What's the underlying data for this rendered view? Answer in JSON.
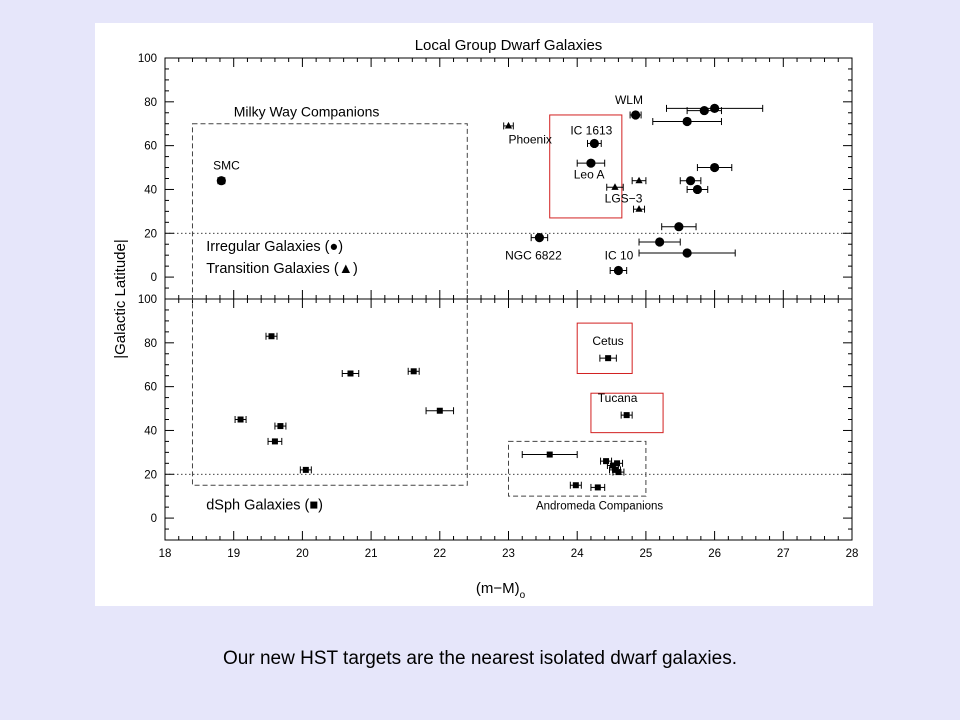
{
  "caption": "Our new HST targets are the nearest isolated dwarf galaxies.",
  "colors": {
    "slide_background": "#e6e6fa",
    "figure_background": "#ffffff",
    "highlight_box": "#d22020",
    "ink": "#000000"
  },
  "chart_data": {
    "type": "scatter",
    "title": "Local Group Dwarf Galaxies",
    "xlabel_main": "(m−M)",
    "xlabel_sub": "o",
    "ylabel": "|Galactic Latitude|",
    "xlim": [
      18,
      28
    ],
    "ylim": [
      -10,
      100
    ],
    "xticks": [
      18,
      19,
      20,
      21,
      22,
      23,
      24,
      25,
      26,
      27,
      28
    ],
    "yticks": [
      0,
      20,
      40,
      60,
      80,
      100
    ],
    "grid": false,
    "reference_line_y": 20,
    "panels": [
      {
        "id": "top",
        "legend": [
          "Irregular Galaxies (●)",
          "Transition Galaxies (▲)"
        ],
        "series": [
          {
            "marker": "circle",
            "points": [
              {
                "x": 18.82,
                "y": 44,
                "xerr": 0.05
              },
              {
                "x": 23.45,
                "y": 18,
                "xerr": 0.12
              },
              {
                "x": 24.2,
                "y": 52,
                "xerr": 0.2
              },
              {
                "x": 24.25,
                "y": 61,
                "xerr": 0.1
              },
              {
                "x": 24.6,
                "y": 3,
                "xerr": 0.12
              },
              {
                "x": 24.85,
                "y": 74,
                "xerr": 0.08
              },
              {
                "x": 25.2,
                "y": 16,
                "xerr": 0.3
              },
              {
                "x": 25.48,
                "y": 23,
                "xerr": 0.25
              },
              {
                "x": 25.6,
                "y": 11,
                "xerr": 0.7
              },
              {
                "x": 25.6,
                "y": 71,
                "xerr": 0.5
              },
              {
                "x": 25.65,
                "y": 44,
                "xerr": 0.15
              },
              {
                "x": 25.75,
                "y": 40,
                "xerr": 0.15
              },
              {
                "x": 25.85,
                "y": 76,
                "xerr": 0.25
              },
              {
                "x": 26.0,
                "y": 50,
                "xerr": 0.25
              },
              {
                "x": 26.0,
                "y": 77,
                "xerr": 0.7
              }
            ]
          },
          {
            "marker": "triangle",
            "points": [
              {
                "x": 23.0,
                "y": 69,
                "xerr": 0.07
              },
              {
                "x": 24.55,
                "y": 41,
                "xerr": 0.12
              },
              {
                "x": 24.9,
                "y": 44,
                "xerr": 0.1
              },
              {
                "x": 24.9,
                "y": 31,
                "xerr": 0.08
              }
            ]
          }
        ],
        "labels": [
          {
            "text": "SMC",
            "x": 18.7,
            "y": 49
          },
          {
            "text": "Phoenix",
            "x": 23.0,
            "y": 61
          },
          {
            "text": "IC 1613",
            "x": 23.9,
            "y": 65
          },
          {
            "text": "WLM",
            "x": 24.55,
            "y": 79
          },
          {
            "text": "Leo A",
            "x": 23.95,
            "y": 45
          },
          {
            "text": "LGS−3",
            "x": 24.4,
            "y": 34
          },
          {
            "text": "NGC 6822",
            "x": 22.95,
            "y": 8
          },
          {
            "text": "IC 10",
            "x": 24.4,
            "y": 8
          }
        ]
      },
      {
        "id": "bottom",
        "legend": [
          "dSph Galaxies (■)"
        ],
        "series": [
          {
            "marker": "square",
            "points": [
              {
                "x": 19.1,
                "y": 45,
                "xerr": 0.08
              },
              {
                "x": 19.55,
                "y": 83,
                "xerr": 0.08
              },
              {
                "x": 19.6,
                "y": 35,
                "xerr": 0.1
              },
              {
                "x": 19.68,
                "y": 42,
                "xerr": 0.08
              },
              {
                "x": 20.05,
                "y": 22,
                "xerr": 0.08
              },
              {
                "x": 20.7,
                "y": 66,
                "xerr": 0.12
              },
              {
                "x": 21.62,
                "y": 67,
                "xerr": 0.08
              },
              {
                "x": 22.0,
                "y": 49,
                "xerr": 0.2
              },
              {
                "x": 23.6,
                "y": 29,
                "xerr": 0.4
              },
              {
                "x": 23.98,
                "y": 15,
                "xerr": 0.08
              },
              {
                "x": 24.3,
                "y": 14,
                "xerr": 0.1
              },
              {
                "x": 24.42,
                "y": 26,
                "xerr": 0.08
              },
              {
                "x": 24.45,
                "y": 73,
                "xerr": 0.12
              },
              {
                "x": 24.52,
                "y": 24,
                "xerr": 0.08
              },
              {
                "x": 24.55,
                "y": 22,
                "xerr": 0.08
              },
              {
                "x": 24.58,
                "y": 25,
                "xerr": 0.08
              },
              {
                "x": 24.6,
                "y": 21,
                "xerr": 0.08
              },
              {
                "x": 24.72,
                "y": 47,
                "xerr": 0.08
              }
            ]
          }
        ],
        "labels": [
          {
            "text": "Cetus",
            "x": 24.22,
            "y": 79
          },
          {
            "text": "Tucana",
            "x": 24.3,
            "y": 53
          },
          {
            "text": "Andromeda Companions",
            "x": 23.4,
            "y": 4
          }
        ]
      }
    ],
    "dashed_boxes": [
      {
        "label": "Milky Way Companions",
        "x_range": [
          18.4,
          22.4
        ],
        "y_top": 70,
        "y_bottom": 15,
        "panel_top": "top",
        "panel_bottom": "bottom"
      }
    ],
    "andromeda_box": {
      "panel": "bottom",
      "x_range": [
        23.0,
        25.0
      ],
      "y_range": [
        10,
        35
      ]
    },
    "highlight_boxes": [
      {
        "panel": "top",
        "x_range": [
          23.6,
          24.65
        ],
        "y_range": [
          27,
          74
        ]
      },
      {
        "panel": "bottom",
        "x_range": [
          24.0,
          24.8
        ],
        "y_range": [
          66,
          89
        ]
      },
      {
        "panel": "bottom",
        "x_range": [
          24.2,
          25.25
        ],
        "y_range": [
          39,
          57
        ]
      }
    ]
  }
}
